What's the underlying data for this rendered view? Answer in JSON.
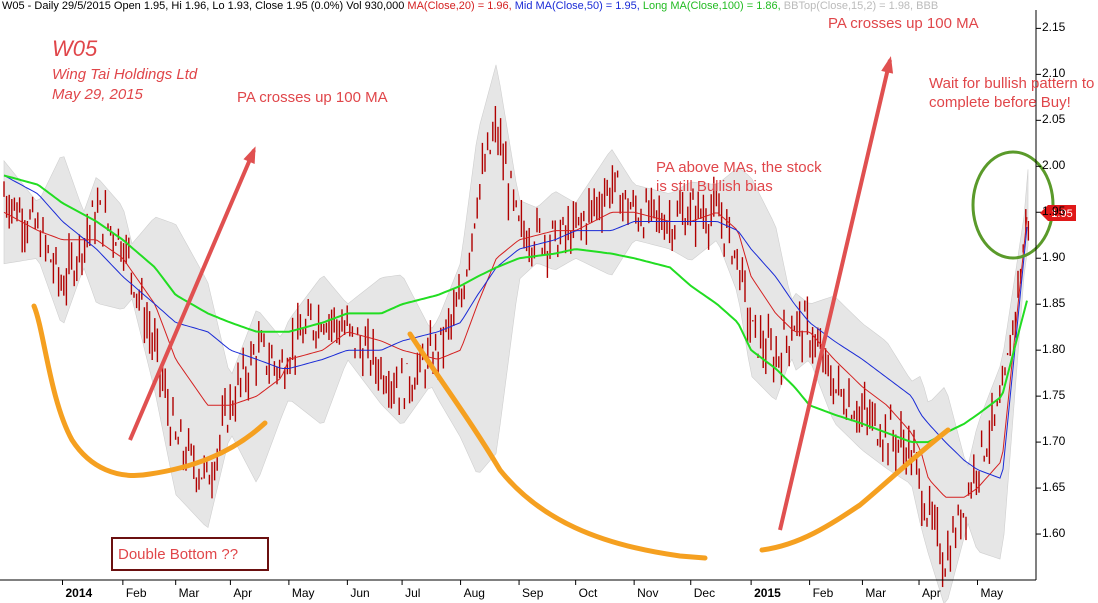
{
  "header": {
    "items": [
      {
        "text": "W05 - Daily 29/5/2015 Open 1.95, Hi 1.96, Lo 1.93, Close 1.95 (0.0%) Vol 930,000 ",
        "color": "#000000"
      },
      {
        "text": "MA(Close,20) = 1.96, ",
        "color": "#d42020"
      },
      {
        "text": "Mid MA(Close,50) = 1.95, ",
        "color": "#1a2bd6"
      },
      {
        "text": "Long MA(Close,100) = 1.86, ",
        "color": "#22bb22"
      },
      {
        "text": "BBTop(Close,15,2) = 1.98, ",
        "color": "#bbbbbb"
      },
      {
        "text": "BBB",
        "color": "#bbbbbb"
      }
    ]
  },
  "annotations": {
    "ticker": "W05",
    "company": "Wing Tai Holdings Ltd",
    "date": "May 29, 2015",
    "cross1": "PA crosses up 100 MA",
    "cross2": "PA crosses up 100 MA",
    "above_line1": "PA above MAs, the stock",
    "above_line2": "is still Bullish bias",
    "wait_line1": "Wait for bullish pattern to",
    "wait_line2": "complete before Buy!",
    "double_bottom": "Double Bottom ??"
  },
  "price_tag": "1.95",
  "colors": {
    "price": "#b00000",
    "ma20": "#d42020",
    "ma50": "#1a2bd6",
    "ma100": "#22dd22",
    "band": "#e6e6e6",
    "arrow": "#e05050",
    "curve": "#f5a020",
    "circle": "#5a9a2a"
  },
  "chart_data": {
    "type": "line",
    "title": "W05 - Daily 29/5/2015",
    "ylim": [
      1.55,
      2.17
    ],
    "yticks": [
      "2.15",
      "2.10",
      "2.05",
      "2.00",
      "1.95",
      "1.90",
      "1.85",
      "1.80",
      "1.75",
      "1.70",
      "1.65",
      "1.60"
    ],
    "xticks": [
      {
        "label": "2014",
        "major": true
      },
      {
        "label": "Feb"
      },
      {
        "label": "Mar"
      },
      {
        "label": "Apr"
      },
      {
        "label": "May"
      },
      {
        "label": "Jun"
      },
      {
        "label": "Jul"
      },
      {
        "label": "Aug"
      },
      {
        "label": "Sep"
      },
      {
        "label": "Oct"
      },
      {
        "label": "Nov"
      },
      {
        "label": "Dec"
      },
      {
        "label": "2015",
        "major": true
      },
      {
        "label": "Feb"
      },
      {
        "label": "Mar"
      },
      {
        "label": "Apr"
      },
      {
        "label": "May"
      }
    ],
    "x_dates": [
      "2013-12-02",
      "2013-12-20",
      "2014-01-02",
      "2014-01-20",
      "2014-02-03",
      "2014-02-20",
      "2014-03-03",
      "2014-03-20",
      "2014-04-01",
      "2014-04-15",
      "2014-04-28",
      "2014-05-02",
      "2014-05-20",
      "2014-06-02",
      "2014-06-20",
      "2014-07-01",
      "2014-07-20",
      "2014-08-01",
      "2014-08-10",
      "2014-08-20",
      "2014-09-01",
      "2014-09-20",
      "2014-10-01",
      "2014-10-20",
      "2014-11-01",
      "2014-11-20",
      "2014-12-01",
      "2014-12-15",
      "2014-12-26",
      "2015-01-02",
      "2015-01-15",
      "2015-01-25",
      "2015-02-02",
      "2015-02-15",
      "2015-03-02",
      "2015-03-15",
      "2015-03-28",
      "2015-04-02",
      "2015-04-06",
      "2015-04-15",
      "2015-04-25",
      "2015-05-02",
      "2015-05-15",
      "2015-05-29"
    ],
    "series": [
      {
        "name": "Close",
        "values": [
          1.97,
          1.93,
          1.87,
          1.95,
          1.92,
          1.8,
          1.7,
          1.66,
          1.74,
          1.8,
          1.78,
          1.8,
          1.84,
          1.82,
          1.78,
          1.76,
          1.8,
          1.85,
          1.97,
          2.04,
          1.93,
          1.92,
          1.93,
          1.98,
          1.95,
          1.94,
          1.95,
          1.95,
          1.9,
          1.82,
          1.79,
          1.83,
          1.82,
          1.76,
          1.73,
          1.71,
          1.69,
          1.65,
          1.62,
          1.57,
          1.63,
          1.68,
          1.74,
          1.95
        ]
      },
      {
        "name": "MA(Close,20)",
        "values": [
          1.95,
          1.93,
          1.92,
          1.92,
          1.9,
          1.85,
          1.79,
          1.74,
          1.74,
          1.75,
          1.77,
          1.79,
          1.8,
          1.82,
          1.81,
          1.8,
          1.79,
          1.8,
          1.85,
          1.9,
          1.92,
          1.93,
          1.93,
          1.95,
          1.95,
          1.94,
          1.94,
          1.95,
          1.93,
          1.88,
          1.84,
          1.82,
          1.82,
          1.79,
          1.76,
          1.74,
          1.71,
          1.69,
          1.66,
          1.64,
          1.64,
          1.65,
          1.68,
          1.96
        ]
      },
      {
        "name": "Mid MA(Close,50)",
        "values": [
          1.99,
          1.97,
          1.94,
          1.91,
          1.88,
          1.85,
          1.83,
          1.82,
          1.8,
          1.79,
          1.78,
          1.78,
          1.79,
          1.8,
          1.8,
          1.81,
          1.82,
          1.83,
          1.86,
          1.89,
          1.91,
          1.92,
          1.93,
          1.93,
          1.94,
          1.94,
          1.94,
          1.94,
          1.93,
          1.91,
          1.88,
          1.85,
          1.83,
          1.81,
          1.79,
          1.77,
          1.75,
          1.73,
          1.72,
          1.7,
          1.68,
          1.67,
          1.66,
          1.95
        ]
      },
      {
        "name": "Long MA(Close,100)",
        "values": [
          1.99,
          1.98,
          1.96,
          1.94,
          1.92,
          1.89,
          1.86,
          1.84,
          1.83,
          1.82,
          1.82,
          1.82,
          1.83,
          1.84,
          1.84,
          1.85,
          1.86,
          1.87,
          1.88,
          1.89,
          1.9,
          1.905,
          1.91,
          1.905,
          1.9,
          1.89,
          1.87,
          1.85,
          1.83,
          1.8,
          1.78,
          1.76,
          1.74,
          1.73,
          1.72,
          1.71,
          1.7,
          1.7,
          1.7,
          1.71,
          1.72,
          1.73,
          1.75,
          1.86
        ]
      }
    ]
  }
}
